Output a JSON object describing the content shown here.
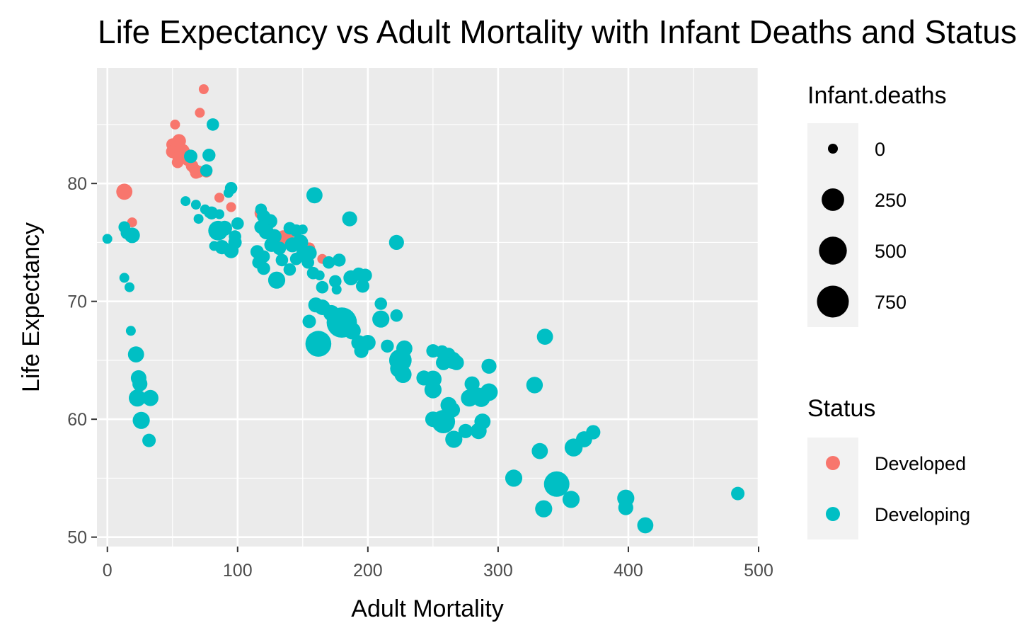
{
  "chart_data": {
    "type": "scatter",
    "title": "Life Expectancy vs Adult Mortality with Infant Deaths and Status",
    "xlabel": "Adult Mortality",
    "ylabel": "Life Expectancy",
    "xlim": [
      -8,
      500
    ],
    "ylim": [
      49.2,
      89.8
    ],
    "xticks": [
      0,
      100,
      200,
      300,
      400,
      500
    ],
    "yticks": [
      50,
      60,
      70,
      80
    ],
    "grid": true,
    "legend_size": {
      "title": "Infant.deaths",
      "entries": [
        {
          "label": "0",
          "value": 0
        },
        {
          "label": "250",
          "value": 250
        },
        {
          "label": "500",
          "value": 500
        },
        {
          "label": "750",
          "value": 750
        }
      ]
    },
    "legend_color": {
      "title": "Status",
      "entries": [
        {
          "label": "Developed",
          "color": "#F8766D"
        },
        {
          "label": "Developing",
          "color": "#00BFC4"
        }
      ]
    },
    "series": [
      {
        "name": "Developed",
        "color": "#F8766D",
        "points": [
          [
            74,
            88,
            0
          ],
          [
            71,
            86,
            0
          ],
          [
            52,
            85,
            0
          ],
          [
            55,
            83.6,
            25
          ],
          [
            50,
            83.3,
            10
          ],
          [
            53,
            83,
            20
          ],
          [
            58,
            82.8,
            15
          ],
          [
            60,
            82.5,
            12
          ],
          [
            50,
            82.7,
            15
          ],
          [
            55,
            82.2,
            20
          ],
          [
            62,
            82,
            10
          ],
          [
            54,
            81.8,
            5
          ],
          [
            65,
            81.5,
            10
          ],
          [
            67,
            81.2,
            5
          ],
          [
            70,
            81,
            8
          ],
          [
            68,
            80.9,
            5
          ],
          [
            76,
            81,
            5
          ],
          [
            86,
            78.8,
            0
          ],
          [
            95,
            78,
            0
          ],
          [
            13,
            79.3,
            60
          ],
          [
            19,
            76.7,
            0
          ],
          [
            118,
            77.5,
            15
          ],
          [
            135,
            75.5,
            10
          ],
          [
            140,
            75.8,
            5
          ],
          [
            138,
            75,
            10
          ],
          [
            132,
            75.2,
            15
          ],
          [
            155,
            74.5,
            5
          ],
          [
            165,
            73.6,
            0
          ]
        ]
      },
      {
        "name": "Developing",
        "color": "#00BFC4",
        "points": [
          [
            0,
            75.3,
            0
          ],
          [
            13,
            76.3,
            5
          ],
          [
            15,
            75.8,
            10
          ],
          [
            19,
            75.6,
            50
          ],
          [
            13,
            72,
            0
          ],
          [
            17,
            71.2,
            0
          ],
          [
            18,
            67.5,
            0
          ],
          [
            22,
            65.5,
            60
          ],
          [
            24,
            63.5,
            50
          ],
          [
            25,
            63,
            40
          ],
          [
            23,
            61.8,
            80
          ],
          [
            33,
            61.8,
            60
          ],
          [
            26,
            59.9,
            80
          ],
          [
            32,
            58.2,
            20
          ],
          [
            81,
            85,
            10
          ],
          [
            64,
            82.3,
            20
          ],
          [
            78,
            82.4,
            15
          ],
          [
            76,
            81.1,
            10
          ],
          [
            60,
            78.5,
            0
          ],
          [
            68,
            78.2,
            0
          ],
          [
            75,
            77.8,
            0
          ],
          [
            78,
            77.5,
            0
          ],
          [
            70,
            77,
            0
          ],
          [
            86,
            77.4,
            0
          ],
          [
            80,
            77.5,
            15
          ],
          [
            85,
            76,
            150
          ],
          [
            90,
            76.2,
            40
          ],
          [
            82,
            74.7,
            0
          ],
          [
            88,
            74.6,
            30
          ],
          [
            95,
            74.3,
            40
          ],
          [
            98,
            75,
            20
          ],
          [
            98,
            75.5,
            10
          ],
          [
            100,
            76.6,
            10
          ],
          [
            93,
            79.2,
            0
          ],
          [
            95,
            79.6,
            10
          ],
          [
            159,
            79,
            60
          ],
          [
            186,
            77,
            40
          ],
          [
            222,
            75,
            40
          ],
          [
            118,
            77.8,
            5
          ],
          [
            120,
            77.2,
            20
          ],
          [
            125,
            76.8,
            30
          ],
          [
            118,
            76.3,
            20
          ],
          [
            122,
            75.9,
            40
          ],
          [
            128,
            75.5,
            40
          ],
          [
            126,
            74.8,
            30
          ],
          [
            132,
            74.5,
            20
          ],
          [
            115,
            74.2,
            20
          ],
          [
            120,
            73.8,
            10
          ],
          [
            116,
            73.3,
            10
          ],
          [
            120,
            72.8,
            15
          ],
          [
            130,
            71.8,
            80
          ],
          [
            134,
            73.5,
            10
          ],
          [
            140,
            72.7,
            10
          ],
          [
            145,
            73.6,
            10
          ],
          [
            148,
            75,
            60
          ],
          [
            142,
            74.8,
            40
          ],
          [
            150,
            74,
            20
          ],
          [
            155,
            74.1,
            40
          ],
          [
            154,
            73.3,
            10
          ],
          [
            158,
            72.4,
            10
          ],
          [
            163,
            72.2,
            0
          ],
          [
            170,
            73.3,
            10
          ],
          [
            178,
            73.5,
            15
          ],
          [
            175,
            71.7,
            10
          ],
          [
            176,
            71,
            0
          ],
          [
            165,
            71.2,
            10
          ],
          [
            145,
            76,
            10
          ],
          [
            150,
            76.1,
            0
          ],
          [
            140,
            76.2,
            10
          ],
          [
            160,
            69.7,
            40
          ],
          [
            155,
            68.3,
            20
          ],
          [
            162,
            66.4,
            400
          ],
          [
            165,
            69.5,
            50
          ],
          [
            172,
            69,
            60
          ],
          [
            180,
            68.2,
            650
          ],
          [
            188,
            67.5,
            80
          ],
          [
            193,
            66.5,
            40
          ],
          [
            195,
            65.8,
            30
          ],
          [
            200,
            66.5,
            50
          ],
          [
            187,
            72,
            40
          ],
          [
            193,
            72.3,
            20
          ],
          [
            198,
            72.2,
            20
          ],
          [
            196,
            71.3,
            20
          ],
          [
            210,
            69.8,
            10
          ],
          [
            210,
            68.5,
            80
          ],
          [
            222,
            68.8,
            10
          ],
          [
            215,
            66.2,
            15
          ],
          [
            225,
            65,
            250
          ],
          [
            228,
            66,
            60
          ],
          [
            224,
            64.3,
            100
          ],
          [
            227,
            63.8,
            80
          ],
          [
            250,
            65.8,
            20
          ],
          [
            257,
            65.7,
            20
          ],
          [
            262,
            65.5,
            20
          ],
          [
            265,
            65,
            80
          ],
          [
            268,
            64.8,
            40
          ],
          [
            258,
            64.8,
            40
          ],
          [
            243,
            63.5,
            40
          ],
          [
            250,
            62.5,
            80
          ],
          [
            250,
            63.4,
            80
          ],
          [
            250,
            60,
            50
          ],
          [
            258,
            59.8,
            280
          ],
          [
            262,
            61.2,
            60
          ],
          [
            265,
            60.8,
            40
          ],
          [
            266,
            58.3,
            80
          ],
          [
            275,
            59,
            30
          ],
          [
            285,
            59,
            60
          ],
          [
            288,
            59.8,
            60
          ],
          [
            285,
            62,
            60
          ],
          [
            287,
            61.8,
            100
          ],
          [
            293,
            62.3,
            90
          ],
          [
            293,
            64.5,
            40
          ],
          [
            280,
            63,
            40
          ],
          [
            278,
            61.8,
            80
          ],
          [
            328,
            62.9,
            70
          ],
          [
            336,
            67,
            60
          ],
          [
            332,
            57.3,
            60
          ],
          [
            358,
            57.6,
            100
          ],
          [
            366,
            58.3,
            60
          ],
          [
            373,
            58.9,
            30
          ],
          [
            312,
            55,
            80
          ],
          [
            345,
            54.5,
            380
          ],
          [
            356,
            53.2,
            80
          ],
          [
            335,
            52.4,
            80
          ],
          [
            398,
            53.3,
            80
          ],
          [
            398,
            52.5,
            40
          ],
          [
            413,
            51,
            60
          ],
          [
            484,
            53.7,
            20
          ]
        ]
      }
    ]
  }
}
